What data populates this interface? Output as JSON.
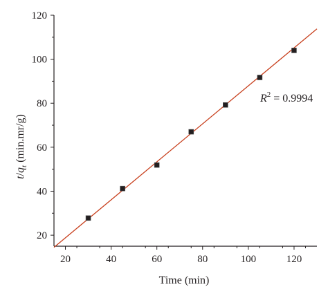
{
  "chart_data": {
    "type": "scatter",
    "xlabel": "Time (min)",
    "ylabel_parts": {
      "t": "t",
      "slash": "/",
      "q": "q",
      "q_sub": "t",
      "units": " (min.mr/g)"
    },
    "xlim": [
      15,
      130
    ],
    "ylim": [
      15,
      120
    ],
    "x_ticks": [
      20,
      40,
      60,
      80,
      100,
      120
    ],
    "y_ticks": [
      20,
      40,
      60,
      80,
      100,
      120
    ],
    "series": [
      {
        "marker": "square",
        "x": [
          30,
          45,
          60,
          75,
          90,
          105,
          120
        ],
        "y": [
          27.8,
          41.2,
          51.9,
          67.0,
          79.2,
          91.7,
          104.0
        ]
      }
    ],
    "fit_line": {
      "x": [
        15,
        130
      ],
      "y": [
        14.5,
        113.8
      ]
    },
    "annotation": {
      "R": "R",
      "sup": "2",
      "text": " = 0.9994"
    },
    "grid": false,
    "colors": {
      "marker": "#231f20",
      "fit": "#c8401e",
      "axis": "#231f20"
    }
  }
}
